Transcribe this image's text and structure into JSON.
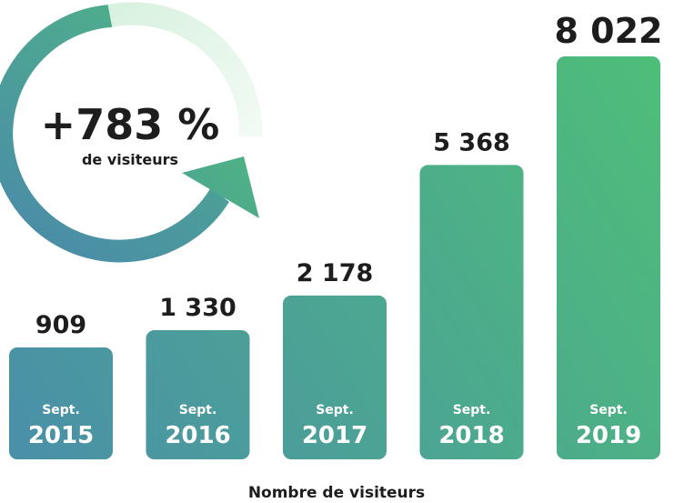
{
  "chart_data": {
    "type": "bar",
    "categories": [
      "2015",
      "2016",
      "2017",
      "2018",
      "2019"
    ],
    "category_prefix": "Sept.",
    "values": [
      909,
      1330,
      2178,
      5368,
      8022
    ],
    "value_labels": [
      "909",
      "1 330",
      "2 178",
      "5 368",
      "8 022"
    ],
    "xlabel": "Nombre de visiteurs",
    "ylabel": "",
    "title": "",
    "grid": false,
    "colors": {
      "start": "#4a90a8",
      "end": "#4ebd7a"
    }
  },
  "growth_badge": {
    "value": "+783 %",
    "label": "de visiteurs"
  },
  "colors": {
    "text": "#1d1d1d",
    "bar_text": "#ffffff",
    "ring_light": "#e6f5eb"
  }
}
